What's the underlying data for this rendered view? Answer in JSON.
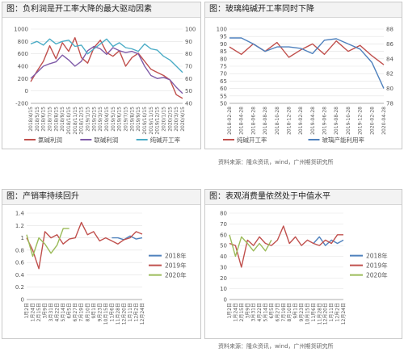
{
  "sources": {
    "top": "资料来源：隆众资讯，wind，广州期货研究所",
    "bottom": "资料来源：隆众资讯，wind，广州期货研究所"
  },
  "chart_data": [
    {
      "id": "p1",
      "type": "line",
      "title": "图：负利润是开工率大降的最大驱动因素",
      "categories": [
        "2018/4/15",
        "2018/5/15",
        "2018/6/15",
        "2018/7/15",
        "2018/8/15",
        "2018/9/15",
        "2018/10/15",
        "2018/11/15",
        "2018/12/15",
        "2019/1/15",
        "2019/2/15",
        "2019/3/15",
        "2019/4/15",
        "2019/5/15",
        "2019/6/15",
        "2019/7/15",
        "2019/8/15",
        "2019/9/15",
        "2019/10/15",
        "2019/11/15",
        "2019/12/15",
        "2020/1/15",
        "2020/2/15",
        "2020/3/15",
        "2020/4/15"
      ],
      "x_tick_labels": [
        "2018/4/15",
        "2018/5/15",
        "2018/6/15",
        "2018/7/15",
        "2018/8/15",
        "2018/9/15",
        "2018/10/15",
        "2018/11/15",
        "2018/12/15",
        "2019/1/15",
        "2019/2/15",
        "2019/3/15",
        "2019/4/15",
        "2019/5/15",
        "2019/6/15",
        "2019/7/15",
        "2019/8/15",
        "2019/9/15",
        "2019/10/15",
        "2019/11/15",
        "2019/12/15",
        "2020/1/15",
        "2020/2/15",
        "2020/3/15",
        "2020/4/15"
      ],
      "y_left": {
        "min": -200,
        "max": 1000,
        "ticks": [
          -200,
          0,
          200,
          400,
          600,
          800,
          1000
        ]
      },
      "y_right": {
        "min": 40,
        "max": 100,
        "ticks": [
          40,
          50,
          60,
          70,
          80,
          90,
          100
        ]
      },
      "series": [
        {
          "name": "氯碱利润",
          "color": "#c0504d",
          "axis": "left",
          "values": [
            150,
            320,
            480,
            730,
            520,
            780,
            640,
            860,
            540,
            450,
            700,
            820,
            620,
            560,
            650,
            400,
            540,
            610,
            480,
            350,
            300,
            250,
            180,
            -60,
            -120
          ]
        },
        {
          "name": "联碱利润",
          "color": "#7f5ba8",
          "axis": "left",
          "values": [
            200,
            300,
            400,
            440,
            470,
            580,
            500,
            400,
            480,
            650,
            720,
            680,
            590,
            700,
            650,
            620,
            640,
            600,
            400,
            250,
            200,
            220,
            180,
            60,
            -40
          ]
        },
        {
          "name": "纯碱开工率",
          "color": "#4bacc6",
          "axis": "right",
          "values": [
            88,
            90,
            87,
            92,
            88,
            90,
            91,
            86,
            87,
            80,
            84,
            88,
            92,
            86,
            89,
            85,
            84,
            82,
            88,
            84,
            83,
            78,
            75,
            70,
            65
          ]
        }
      ],
      "legend_position": "bottom"
    },
    {
      "id": "p2",
      "type": "line",
      "title": "图：玻璃纯碱开工率同时下降",
      "categories": [
        "2018-02-28",
        "2018-04-28",
        "2018-06-28",
        "2018-08-28",
        "2018-10-28",
        "2018-12-28",
        "2019-02-28",
        "2019-04-28",
        "2019-06-28",
        "2019-08-28",
        "2019-10-28",
        "2019-12-28",
        "2020-02-28",
        "2020-04-28"
      ],
      "x_tick_labels": [
        "2018-02-28",
        "2018-04-28",
        "2018-06-28",
        "2018-08-28",
        "2018-10-28",
        "2018-12-28",
        "2019-02-28",
        "2019-04-28",
        "2019-06-28",
        "2019-08-28",
        "2019-10-28",
        "2019-12-28",
        "2020-02-28",
        "2020-04-28"
      ],
      "y_left": {
        "min": 50,
        "max": 100,
        "ticks": [
          50,
          55,
          60,
          65,
          70,
          75,
          80,
          85,
          90,
          95,
          100
        ]
      },
      "y_right": {
        "min": 78,
        "max": 88,
        "ticks": [
          78,
          80,
          82,
          84,
          86,
          88
        ]
      },
      "series": [
        {
          "name": "纯碱开工率",
          "color": "#c0504d",
          "axis": "left",
          "values": [
            88,
            83,
            90,
            85,
            91,
            81,
            86,
            90,
            83,
            92,
            85,
            89,
            82,
            76
          ]
        },
        {
          "name": "玻璃产能利用率",
          "color": "#4f81bd",
          "axis": "right",
          "values": [
            86.8,
            86.8,
            86.0,
            85.0,
            85.6,
            85.6,
            85.4,
            84.7,
            86.5,
            86.7,
            86.0,
            85.3,
            83.5,
            80.0
          ]
        }
      ],
      "legend_position": "bottom"
    },
    {
      "id": "p3",
      "type": "line",
      "title": "图：产销率持续回升",
      "categories": [
        "1月2日",
        "1月24日",
        "2月15日",
        "3月9日",
        "3月31日",
        "4月22日",
        "5月14日",
        "6月5日",
        "6月27日",
        "7月19日",
        "8月10日",
        "9月1日",
        "9月23日",
        "10月15日",
        "11月6日",
        "11月28日",
        "12月20日",
        "1月11日",
        "12月2日",
        "12月24日"
      ],
      "x_tick_labels": [
        "1月2日",
        "1月24日",
        "2月15日",
        "3月9日",
        "3月31日",
        "4月22日",
        "5月14日",
        "6月5日",
        "6月27日",
        "7月19日",
        "8月10日",
        "9月1日",
        "9月23日",
        "10月15日",
        "11月6日",
        "11月28日",
        "12月20日",
        "1月11日",
        "12月2日",
        "12月24日"
      ],
      "y_left": {
        "min": 0,
        "max": 1.4,
        "ticks": [
          0,
          0.2,
          0.4,
          0.6,
          0.8,
          1,
          1.2,
          1.4
        ]
      },
      "series": [
        {
          "name": "2018年",
          "color": "#4f81bd",
          "values": [
            null,
            null,
            null,
            null,
            null,
            null,
            null,
            null,
            null,
            null,
            null,
            null,
            null,
            null,
            1.0,
            1.0,
            0.97,
            1.03,
            0.98,
            1.0
          ]
        },
        {
          "name": "2019年",
          "color": "#c0504d",
          "values": [
            1.0,
            0.8,
            0.5,
            1.1,
            1.0,
            1.05,
            0.9,
            0.98,
            1.0,
            1.25,
            1.05,
            1.1,
            0.95,
            1.0,
            0.95,
            0.9,
            0.97,
            1.0,
            1.1,
            1.06
          ]
        },
        {
          "name": "2020年",
          "color": "#9bbb59",
          "values": [
            1.05,
            0.7,
            1.0,
            0.9,
            0.75,
            0.88,
            1.15,
            1.15,
            null,
            null,
            null,
            null,
            null,
            null,
            null,
            null,
            null,
            null,
            null,
            null
          ]
        }
      ],
      "legend_position": "right"
    },
    {
      "id": "p4",
      "type": "line",
      "title": "图：表观消费量依然处于中值水平",
      "categories": [
        "1月2日",
        "1月24日",
        "2月15日",
        "3月9日",
        "3月31日",
        "4月22日",
        "5月14日",
        "6月5日",
        "6月27日",
        "7月19日",
        "8月10日",
        "9月1日",
        "9月23日",
        "10月15日",
        "11月6日",
        "11月28日",
        "12月20日",
        "1月11日",
        "12月2日",
        "12月24日"
      ],
      "x_tick_labels": [
        "1月2日",
        "1月24日",
        "2月15日",
        "3月9日",
        "3月31日",
        "4月22日",
        "5月14日",
        "6月5日",
        "6月27日",
        "7月19日",
        "8月10日",
        "9月1日",
        "9月23日",
        "10月15日",
        "11月6日",
        "11月28日",
        "12月20日",
        "1月11日",
        "12月2日",
        "12月24日"
      ],
      "y_left": {
        "min": 0,
        "max": 80,
        "ticks": [
          0,
          10,
          20,
          30,
          40,
          50,
          60,
          70,
          80
        ]
      },
      "series": [
        {
          "name": "2018年",
          "color": "#4f81bd",
          "values": [
            null,
            null,
            null,
            null,
            null,
            null,
            null,
            null,
            null,
            null,
            null,
            null,
            null,
            null,
            52,
            58,
            50,
            55,
            52,
            55
          ]
        },
        {
          "name": "2019年",
          "color": "#c0504d",
          "values": [
            52,
            50,
            30,
            55,
            50,
            58,
            52,
            50,
            55,
            68,
            52,
            58,
            50,
            55,
            52,
            50,
            55,
            52,
            60,
            60
          ]
        },
        {
          "name": "2020年",
          "color": "#9bbb59",
          "values": [
            60,
            40,
            58,
            52,
            45,
            52,
            45,
            55,
            null,
            null,
            null,
            null,
            null,
            null,
            null,
            null,
            null,
            null,
            null,
            null
          ]
        }
      ],
      "legend_position": "right"
    }
  ]
}
